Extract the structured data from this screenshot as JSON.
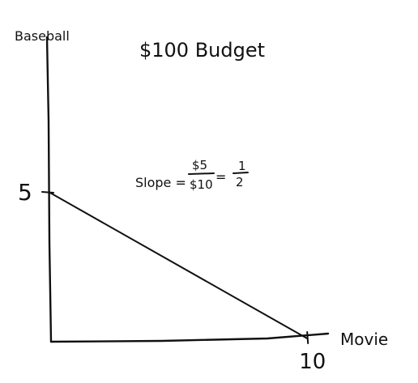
{
  "chart_data": {
    "type": "line",
    "title": "$100 Budget",
    "xlabel": "Movie",
    "ylabel": "Baseball",
    "xlim": [
      0,
      10.4
    ],
    "ylim": [
      0,
      5
    ],
    "x_ticks": [
      {
        "value": 10,
        "label": "10"
      }
    ],
    "y_ticks": [
      {
        "value": 5,
        "label": "5"
      }
    ],
    "series": [
      {
        "x": [
          0,
          10
        ],
        "y": [
          5,
          0
        ]
      }
    ],
    "annotation": {
      "prefix": "Slope =",
      "frac1_num": "$5",
      "frac1_den": "$10",
      "equals": "=",
      "frac2_num": "1",
      "frac2_den": "2"
    },
    "grid": false,
    "ink_color": "#111111"
  }
}
